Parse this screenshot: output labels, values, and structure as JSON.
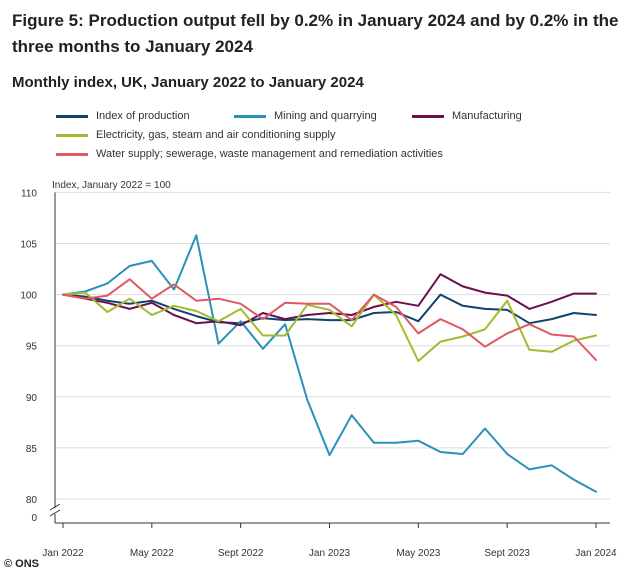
{
  "title": "Figure 5: Production output fell by 0.2% in January 2024 and by 0.2% in the three months to January 2024",
  "subtitle": "Monthly index, UK, January 2022 to January 2024",
  "credit": "© ONS",
  "chart_data": {
    "type": "line",
    "ylabel": "Index, January 2022 = 100",
    "ylim": [
      0,
      110
    ],
    "yticks": [
      0,
      80,
      85,
      90,
      95,
      100,
      105,
      110
    ],
    "axis_break": true,
    "x": [
      "Jan 2022",
      "Feb 2022",
      "Mar 2022",
      "Apr 2022",
      "May 2022",
      "Jun 2022",
      "Jul 2022",
      "Aug 2022",
      "Sep 2022",
      "Oct 2022",
      "Nov 2022",
      "Dec 2022",
      "Jan 2023",
      "Feb 2023",
      "Mar 2023",
      "Apr 2023",
      "May 2023",
      "Jun 2023",
      "Jul 2023",
      "Aug 2023",
      "Sep 2023",
      "Oct 2023",
      "Nov 2023",
      "Dec 2023",
      "Jan 2024"
    ],
    "xtick_labels": [
      "Jan 2022",
      "May 2022",
      "Sept 2022",
      "Jan 2023",
      "May 2023",
      "Sept 2023",
      "Jan 2024"
    ],
    "xtick_index": [
      0,
      4,
      8,
      12,
      16,
      20,
      24
    ],
    "series": [
      {
        "name": "Index of production",
        "color": "#12436d",
        "values": [
          100,
          99.8,
          99.4,
          99.1,
          99.4,
          98.6,
          97.9,
          97.3,
          97.2,
          97.7,
          97.5,
          97.6,
          97.5,
          97.5,
          98.2,
          98.3,
          97.4,
          100.0,
          98.9,
          98.6,
          98.5,
          97.2,
          97.6,
          98.2,
          98.0
        ]
      },
      {
        "name": "Mining and quarrying",
        "color": "#2a91b9",
        "values": [
          100,
          100.3,
          101.1,
          102.8,
          103.3,
          100.5,
          105.8,
          95.2,
          97.4,
          94.7,
          97.1,
          89.7,
          84.3,
          88.2,
          85.5,
          85.5,
          85.7,
          84.6,
          84.4,
          86.9,
          84.4,
          82.9,
          83.3,
          81.9,
          80.7
        ]
      },
      {
        "name": "Manufacturing",
        "color": "#6b0f4d",
        "values": [
          100,
          99.6,
          99.2,
          98.6,
          99.2,
          98.0,
          97.2,
          97.4,
          97.0,
          98.2,
          97.6,
          98.0,
          98.2,
          98.0,
          98.8,
          99.3,
          98.9,
          102.0,
          100.8,
          100.2,
          99.9,
          98.6,
          99.3,
          100.1,
          100.1
        ]
      },
      {
        "name": "Electricity, gas, steam and air conditioning supply",
        "color": "#a4ba2e",
        "values": [
          100,
          100.2,
          98.3,
          99.6,
          98.0,
          98.9,
          98.4,
          97.4,
          98.6,
          96.0,
          96.0,
          99.0,
          98.5,
          96.9,
          100.0,
          98.0,
          93.5,
          95.4,
          95.9,
          96.6,
          99.4,
          94.6,
          94.4,
          95.5,
          96.0
        ]
      },
      {
        "name": "Water supply; sewerage, waste management and remediation activities",
        "color": "#e05863",
        "values": [
          100,
          99.6,
          99.9,
          101.5,
          99.6,
          101.0,
          99.4,
          99.6,
          99.1,
          97.6,
          99.2,
          99.1,
          99.1,
          97.5,
          100.0,
          98.8,
          96.2,
          97.6,
          96.6,
          94.9,
          96.2,
          97.1,
          96.1,
          95.9,
          93.6
        ]
      }
    ]
  }
}
